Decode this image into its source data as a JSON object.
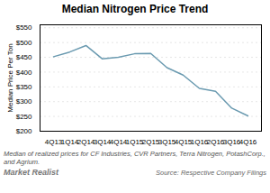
{
  "chart_data": {
    "type": "line",
    "title": "Median Nitrogen Price Trend",
    "ylabel": "Median Price Per Ton",
    "categories": [
      "4Q13",
      "1Q14",
      "2Q14",
      "3Q14",
      "4Q14",
      "1Q15",
      "2Q15",
      "3Q15",
      "4Q15",
      "1Q16",
      "2Q16",
      "3Q16",
      "4Q16"
    ],
    "values": [
      452,
      468,
      490,
      445,
      450,
      462,
      463,
      415,
      390,
      345,
      335,
      278,
      252
    ],
    "color": "#6a9ab0",
    "ylim": [
      200,
      560
    ],
    "yticks": [
      {
        "value": 200,
        "label": "$200"
      },
      {
        "value": 250,
        "label": "$250"
      },
      {
        "value": 300,
        "label": "$300"
      },
      {
        "value": 350,
        "label": "$350"
      },
      {
        "value": 400,
        "label": "$400"
      },
      {
        "value": 450,
        "label": "$450"
      },
      {
        "value": 500,
        "label": "$500"
      },
      {
        "value": 550,
        "label": "$550"
      }
    ],
    "grid": true,
    "footnote": "Median of realized prices for CF Industries, CVR Partners, Terra Nitrogen, PotashCorp., and Agrium.",
    "source": "Source: Respective Company Filings",
    "watermark": "Market Realist"
  }
}
